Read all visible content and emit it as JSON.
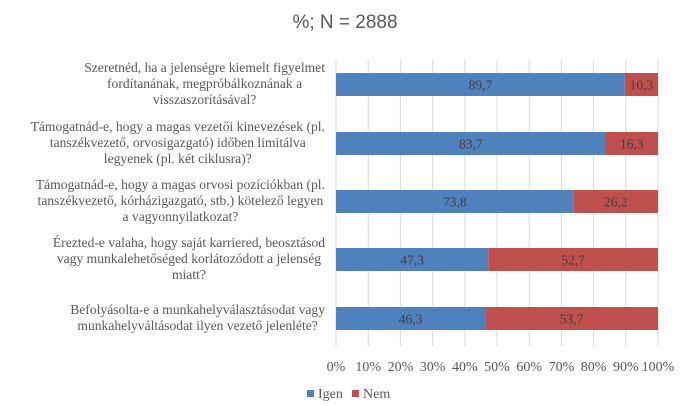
{
  "chart_data": {
    "type": "bar",
    "orientation": "horizontal",
    "stacked": "100%",
    "title": "%; N = 2888",
    "categories": [
      [
        "Szeretnéd, ha a jelenségre kiemelt figyelmet",
        "fordítanának, megpróbálkoznának a",
        "visszaszorításával?"
      ],
      [
        "Támogatnád-e, hogy a magas vezetői kinevezések (pl.",
        "tanszékvezető, orvosigazgató) időben limitálva",
        "legyenek (pl. két ciklusra)?"
      ],
      [
        "Támogatnád-e, hogy a magas orvosi pozíciókban (pl.",
        "tanszékvezető, kórházigazgató, stb.) kötelező legyen",
        "a vagyonnyilatkozat?"
      ],
      [
        "Érezted-e valaha, hogy saját karriered, beosztásod",
        "vagy munkalehetőséged korlátozódott a jelenség",
        "miatt?"
      ],
      [
        "Befolyásolta-e a munkahelyválasztásodat vagy",
        "munkahelyváltásodat ilyen vezető jelenléte?"
      ]
    ],
    "series": [
      {
        "name": "Igen",
        "color": "#4f81bd",
        "values": [
          89.7,
          83.7,
          73.8,
          47.3,
          46.3
        ],
        "labels": [
          "89,7",
          "83,7",
          "73,8",
          "47,3",
          "46,3"
        ]
      },
      {
        "name": "Nem",
        "color": "#c0504d",
        "values": [
          10.3,
          16.3,
          26.2,
          52.7,
          53.7
        ],
        "labels": [
          "10,3",
          "16,3",
          "26,2",
          "52,7",
          "53,7"
        ]
      }
    ],
    "xlim": [
      0,
      100
    ],
    "xticks": [
      "0%",
      "10%",
      "20%",
      "30%",
      "40%",
      "50%",
      "60%",
      "70%",
      "80%",
      "90%",
      "100%"
    ],
    "grid": "vertical",
    "legend": "bottom"
  }
}
